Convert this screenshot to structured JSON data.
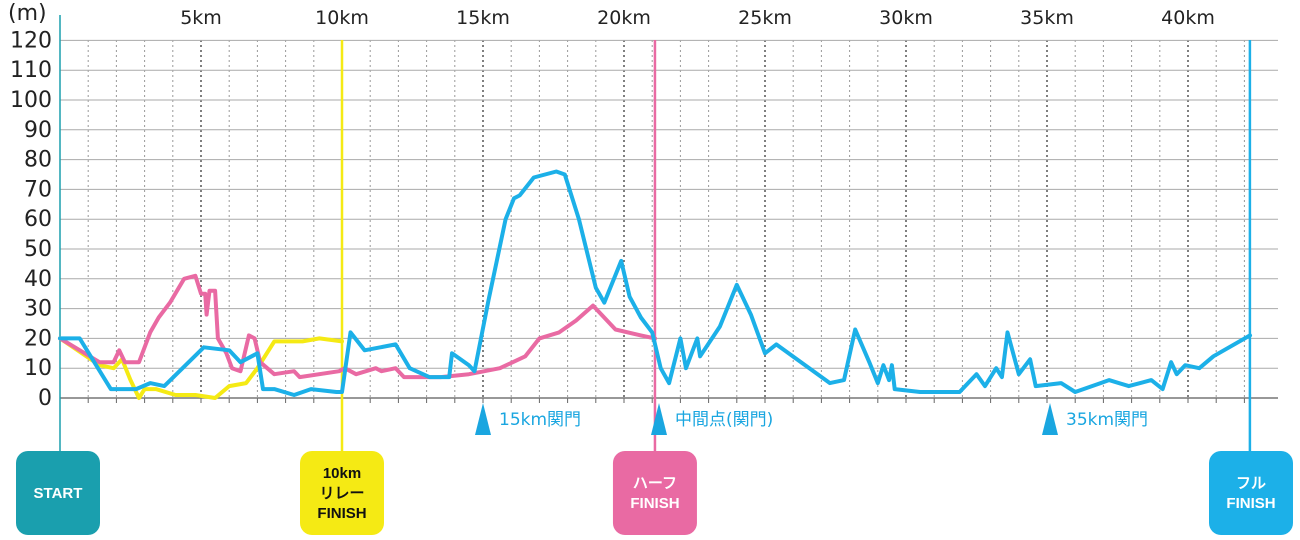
{
  "chart_data": {
    "type": "line",
    "ylabel": "(m)",
    "ylim": [
      0,
      120
    ],
    "xlim": [
      0,
      42.195
    ],
    "yticks": [
      "0",
      "10",
      "20",
      "30",
      "40",
      "50",
      "60",
      "70",
      "80",
      "90",
      "100",
      "110",
      "120"
    ],
    "xticks": [
      {
        "km": 5,
        "label": "5km"
      },
      {
        "km": 10,
        "label": "10km"
      },
      {
        "km": 15,
        "label": "15km"
      },
      {
        "km": 20,
        "label": "20km"
      },
      {
        "km": 25,
        "label": "25km"
      },
      {
        "km": 30,
        "label": "30km"
      },
      {
        "km": 35,
        "label": "35km"
      },
      {
        "km": 40,
        "label": "40km"
      }
    ],
    "grid": true,
    "series": [
      {
        "name": "full",
        "color": "#1cb0e8",
        "points": [
          [
            0,
            20
          ],
          [
            0.7,
            20
          ],
          [
            1.8,
            3
          ],
          [
            2.7,
            3
          ],
          [
            3.2,
            5
          ],
          [
            3.7,
            4
          ],
          [
            5.1,
            17
          ],
          [
            6,
            16
          ],
          [
            6.4,
            12
          ],
          [
            7,
            15
          ],
          [
            7.2,
            3
          ],
          [
            7.6,
            3
          ],
          [
            8.3,
            1
          ],
          [
            8.9,
            3
          ],
          [
            9.8,
            2
          ],
          [
            10,
            2
          ],
          [
            10.3,
            22
          ],
          [
            10.8,
            16
          ],
          [
            11.9,
            18
          ],
          [
            12.4,
            10
          ],
          [
            13.1,
            7
          ],
          [
            13.8,
            7
          ],
          [
            13.9,
            15
          ],
          [
            14.5,
            11
          ],
          [
            14.7,
            9
          ],
          [
            15.2,
            33
          ],
          [
            15.8,
            60
          ],
          [
            16.1,
            67
          ],
          [
            16.3,
            68
          ],
          [
            16.8,
            74
          ],
          [
            17.6,
            76
          ],
          [
            17.9,
            75
          ],
          [
            18.4,
            60
          ],
          [
            19,
            37
          ],
          [
            19.3,
            32
          ],
          [
            19.9,
            46
          ],
          [
            20.2,
            34
          ],
          [
            20.6,
            27
          ],
          [
            21,
            22
          ],
          [
            21.3,
            10
          ],
          [
            21.6,
            5
          ],
          [
            22,
            20
          ],
          [
            22.2,
            10
          ],
          [
            22.6,
            20
          ],
          [
            22.7,
            14
          ],
          [
            23.4,
            24
          ],
          [
            24,
            38
          ],
          [
            24.5,
            28
          ],
          [
            25,
            15
          ],
          [
            25.4,
            18
          ],
          [
            27.3,
            5
          ],
          [
            27.8,
            6
          ],
          [
            28.2,
            23
          ],
          [
            28.7,
            12
          ],
          [
            29,
            5
          ],
          [
            29.2,
            11
          ],
          [
            29.4,
            6
          ],
          [
            29.5,
            11
          ],
          [
            29.6,
            3
          ],
          [
            30.5,
            2
          ],
          [
            31.9,
            2
          ],
          [
            32.5,
            8
          ],
          [
            32.8,
            4
          ],
          [
            33.2,
            10
          ],
          [
            33.4,
            7
          ],
          [
            33.6,
            22
          ],
          [
            34,
            8
          ],
          [
            34.4,
            13
          ],
          [
            34.6,
            4
          ],
          [
            35.5,
            5
          ],
          [
            36,
            2
          ],
          [
            36.9,
            5
          ],
          [
            37.2,
            6
          ],
          [
            37.9,
            4
          ],
          [
            38.7,
            6
          ],
          [
            39.1,
            3
          ],
          [
            39.4,
            12
          ],
          [
            39.6,
            8
          ],
          [
            39.9,
            11
          ],
          [
            40.4,
            10
          ],
          [
            40.9,
            14
          ],
          [
            42.2,
            21
          ]
        ]
      },
      {
        "name": "half",
        "color": "#e96aa3",
        "points": [
          [
            0,
            20
          ],
          [
            1.4,
            12
          ],
          [
            1.9,
            12
          ],
          [
            2.1,
            16
          ],
          [
            2.3,
            12
          ],
          [
            2.8,
            12
          ],
          [
            3.2,
            22
          ],
          [
            3.5,
            27
          ],
          [
            3.9,
            32
          ],
          [
            4.4,
            40
          ],
          [
            4.8,
            41
          ],
          [
            5,
            35
          ],
          [
            5.15,
            35
          ],
          [
            5.2,
            28
          ],
          [
            5.3,
            36
          ],
          [
            5.5,
            36
          ],
          [
            5.6,
            20
          ],
          [
            5.9,
            15
          ],
          [
            6.1,
            10
          ],
          [
            6.4,
            9
          ],
          [
            6.7,
            21
          ],
          [
            6.9,
            20
          ],
          [
            7.1,
            12
          ],
          [
            7.6,
            8
          ],
          [
            8.3,
            9
          ],
          [
            8.5,
            7
          ],
          [
            9.9,
            9
          ],
          [
            10.1,
            10
          ],
          [
            10.5,
            8
          ],
          [
            11.2,
            10
          ],
          [
            11.4,
            9
          ],
          [
            11.9,
            10
          ],
          [
            12.2,
            7
          ],
          [
            13.5,
            7
          ],
          [
            14.5,
            8
          ],
          [
            15.6,
            10
          ],
          [
            16.5,
            14
          ],
          [
            17,
            20
          ],
          [
            17.7,
            22
          ],
          [
            18.3,
            26
          ],
          [
            18.9,
            31
          ],
          [
            19.7,
            23
          ],
          [
            20.6,
            21
          ],
          [
            21.1,
            20
          ]
        ]
      },
      {
        "name": "10km relay",
        "color": "#f5ea14",
        "points": [
          [
            0,
            20
          ],
          [
            1.4,
            11
          ],
          [
            1.9,
            10
          ],
          [
            2.2,
            13
          ],
          [
            2.5,
            6
          ],
          [
            2.8,
            0
          ],
          [
            3,
            3
          ],
          [
            3.4,
            3
          ],
          [
            4.1,
            1
          ],
          [
            4.8,
            1
          ],
          [
            5.5,
            0
          ],
          [
            6,
            4
          ],
          [
            6.6,
            5
          ],
          [
            7,
            10
          ],
          [
            7.6,
            19
          ],
          [
            8.2,
            19
          ],
          [
            8.6,
            19
          ],
          [
            9.2,
            20
          ],
          [
            10,
            19
          ]
        ]
      }
    ],
    "gates": [
      {
        "km": 15,
        "label": "15km関門"
      },
      {
        "km": 21.3,
        "label": "中間点(関門)"
      },
      {
        "km": 35,
        "label": "35km関門"
      }
    ],
    "markers": [
      {
        "name": "start",
        "km": 0,
        "lines": [
          "START"
        ],
        "color": "#1a9fae",
        "text": "#ffffff"
      },
      {
        "name": "relay-finish",
        "km": 10,
        "lines": [
          "10km",
          "リレー",
          "FINISH"
        ],
        "color": "#f5ea14",
        "text": "#111111"
      },
      {
        "name": "half-finish",
        "km": 21.0975,
        "lines": [
          "ハーフ",
          "FINISH"
        ],
        "color": "#e96aa3",
        "text": "#ffffff"
      },
      {
        "name": "full-finish",
        "km": 42.195,
        "lines": [
          "フル",
          "FINISH"
        ],
        "color": "#1cb0e8",
        "text": "#ffffff"
      }
    ]
  }
}
